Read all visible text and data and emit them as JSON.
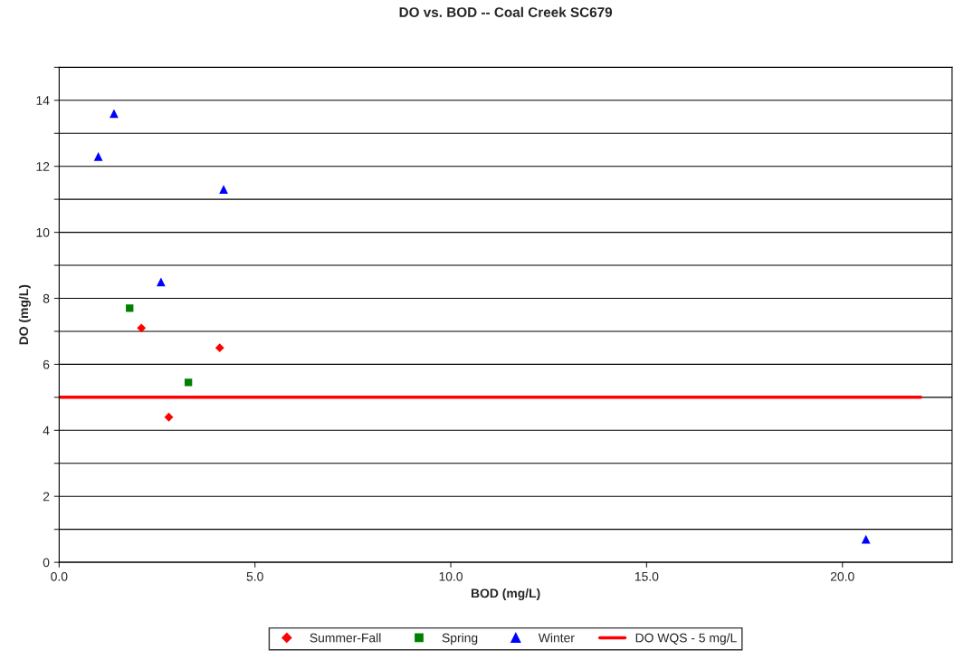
{
  "chart_data": {
    "type": "scatter",
    "title": "DO vs. BOD -- Coal Creek SC679",
    "xlabel": "BOD (mg/L)",
    "ylabel": "DO (mg/L)",
    "series": [
      {
        "name": "Summer-Fall",
        "color": "#ff0000",
        "marker": "diamond",
        "x": [
          2.1,
          4.1,
          2.8
        ],
        "values": [
          7.1,
          6.5,
          4.4
        ]
      },
      {
        "name": "Spring",
        "color": "#008000",
        "marker": "square",
        "x": [
          1.8,
          3.3
        ],
        "values": [
          7.7,
          5.45
        ]
      },
      {
        "name": "Winter",
        "color": "#0000ff",
        "marker": "triangle",
        "x": [
          1.4,
          1.0,
          4.2,
          2.6,
          20.6
        ],
        "values": [
          13.6,
          12.3,
          11.3,
          8.5,
          0.7
        ]
      },
      {
        "name": "DO WQS - 5 mg/L",
        "type": "line",
        "color": "#ff0000",
        "marker": "none",
        "line_style": "solid",
        "x": [
          0,
          22
        ],
        "values": [
          5,
          5
        ]
      }
    ],
    "xlim": [
      0,
      22.8
    ],
    "xticks": [
      {
        "value": 0,
        "label": "0.0"
      },
      {
        "value": 5,
        "label": "5.0"
      },
      {
        "value": 10,
        "label": "10.0"
      },
      {
        "value": 15,
        "label": "15.0"
      },
      {
        "value": 20,
        "label": "20.0"
      }
    ],
    "ylim": [
      0,
      15
    ],
    "yticks": [
      0,
      {
        "value": 1,
        "label": null
      },
      2,
      {
        "value": 3,
        "label": null
      },
      4,
      {
        "value": 5,
        "label": null
      },
      6,
      {
        "value": 7,
        "label": null
      },
      8,
      {
        "value": 9,
        "label": null
      },
      10,
      {
        "value": 11,
        "label": null
      },
      12,
      {
        "value": 13,
        "label": null
      },
      14,
      {
        "value": 15,
        "label": null
      }
    ],
    "grid": "y",
    "legend": "bottom"
  }
}
